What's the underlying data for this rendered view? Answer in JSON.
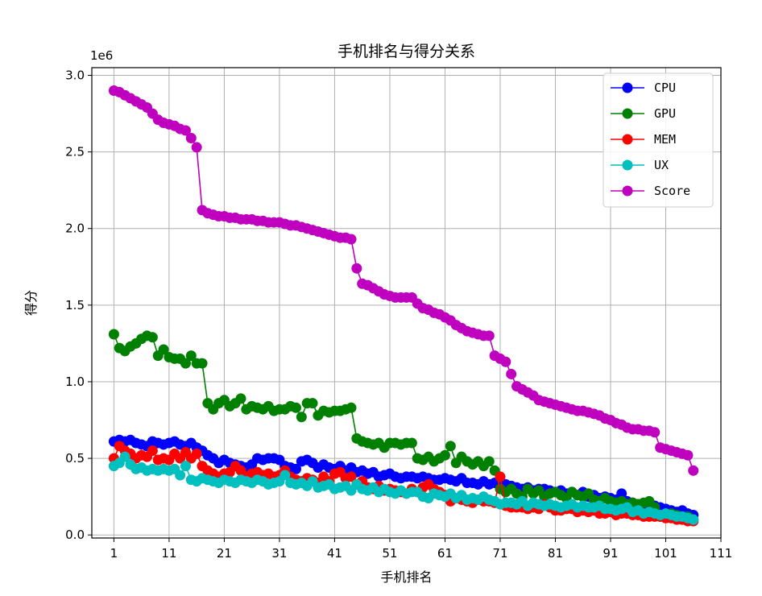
{
  "chart_data": {
    "type": "line",
    "title": "手机排名与得分关系",
    "xlabel": "手机排名",
    "ylabel": "得分",
    "y_offset_label": "1e6",
    "xlim": [
      -3,
      111
    ],
    "ylim": [
      -0.02,
      3.05
    ],
    "xticks": [
      1,
      11,
      21,
      31,
      41,
      51,
      61,
      71,
      81,
      91,
      101,
      111
    ],
    "xtick_labels": [
      "1",
      "11",
      "21",
      "31",
      "41",
      "51",
      "61",
      "71",
      "81",
      "91",
      "101",
      "111"
    ],
    "yticks": [
      0.0,
      0.5,
      1.0,
      1.5,
      2.0,
      2.5,
      3.0
    ],
    "ytick_labels": [
      "0.0",
      "0.5",
      "1.0",
      "1.5",
      "2.0",
      "2.5",
      "3.0"
    ],
    "grid": true,
    "legend_position": "top-right",
    "x": [
      1,
      2,
      3,
      4,
      5,
      6,
      7,
      8,
      9,
      10,
      11,
      12,
      13,
      14,
      15,
      16,
      17,
      18,
      19,
      20,
      21,
      22,
      23,
      24,
      25,
      26,
      27,
      28,
      29,
      30,
      31,
      32,
      33,
      34,
      35,
      36,
      37,
      38,
      39,
      40,
      41,
      42,
      43,
      44,
      45,
      46,
      47,
      48,
      49,
      50,
      51,
      52,
      53,
      54,
      55,
      56,
      57,
      58,
      59,
      60,
      61,
      62,
      63,
      64,
      65,
      66,
      67,
      68,
      69,
      70,
      71,
      72,
      73,
      74,
      75,
      76,
      77,
      78,
      79,
      80,
      81,
      82,
      83,
      84,
      85,
      86,
      87,
      88,
      89,
      90,
      91,
      92,
      93,
      94,
      95,
      96,
      97,
      98,
      99,
      100,
      101,
      102,
      103,
      104,
      105,
      106
    ],
    "series": [
      {
        "name": "CPU",
        "color": "#0000ff",
        "values": [
          0.61,
          0.62,
          0.61,
          0.62,
          0.6,
          0.59,
          0.58,
          0.61,
          0.6,
          0.59,
          0.6,
          0.61,
          0.59,
          0.58,
          0.6,
          0.57,
          0.55,
          0.52,
          0.5,
          0.47,
          0.49,
          0.47,
          0.46,
          0.45,
          0.44,
          0.46,
          0.5,
          0.49,
          0.5,
          0.5,
          0.49,
          0.45,
          0.44,
          0.43,
          0.48,
          0.49,
          0.47,
          0.44,
          0.46,
          0.44,
          0.43,
          0.45,
          0.42,
          0.44,
          0.41,
          0.42,
          0.4,
          0.41,
          0.38,
          0.39,
          0.4,
          0.38,
          0.37,
          0.38,
          0.38,
          0.37,
          0.38,
          0.37,
          0.36,
          0.36,
          0.37,
          0.36,
          0.35,
          0.37,
          0.34,
          0.34,
          0.33,
          0.35,
          0.33,
          0.34,
          0.32,
          0.33,
          0.32,
          0.31,
          0.3,
          0.31,
          0.29,
          0.3,
          0.3,
          0.29,
          0.28,
          0.29,
          0.27,
          0.28,
          0.26,
          0.28,
          0.25,
          0.26,
          0.24,
          0.25,
          0.24,
          0.23,
          0.27,
          0.22,
          0.21,
          0.2,
          0.19,
          0.18,
          0.19,
          0.18,
          0.17,
          0.16,
          0.15,
          0.16,
          0.14,
          0.13
        ]
      },
      {
        "name": "GPU",
        "color": "#008000",
        "values": [
          1.31,
          1.22,
          1.2,
          1.23,
          1.25,
          1.28,
          1.3,
          1.29,
          1.17,
          1.21,
          1.16,
          1.15,
          1.15,
          1.12,
          1.17,
          1.12,
          1.12,
          0.86,
          0.82,
          0.86,
          0.88,
          0.84,
          0.86,
          0.89,
          0.82,
          0.84,
          0.83,
          0.82,
          0.84,
          0.81,
          0.82,
          0.82,
          0.84,
          0.83,
          0.77,
          0.86,
          0.86,
          0.78,
          0.81,
          0.8,
          0.81,
          0.81,
          0.82,
          0.83,
          0.63,
          0.61,
          0.6,
          0.59,
          0.6,
          0.57,
          0.6,
          0.6,
          0.59,
          0.6,
          0.6,
          0.5,
          0.49,
          0.51,
          0.48,
          0.5,
          0.52,
          0.58,
          0.47,
          0.51,
          0.48,
          0.46,
          0.48,
          0.45,
          0.48,
          0.42,
          0.3,
          0.28,
          0.3,
          0.27,
          0.25,
          0.3,
          0.27,
          0.29,
          0.25,
          0.27,
          0.28,
          0.26,
          0.24,
          0.28,
          0.26,
          0.25,
          0.27,
          0.23,
          0.22,
          0.24,
          0.22,
          0.21,
          0.22,
          0.2,
          0.21,
          0.2,
          0.21,
          0.22,
          0.18,
          0.12,
          0.13,
          0.14,
          0.13,
          0.11,
          0.12,
          0.1
        ]
      },
      {
        "name": "MEM",
        "color": "#ff0000",
        "values": [
          0.5,
          0.58,
          0.55,
          0.53,
          0.5,
          0.52,
          0.51,
          0.55,
          0.49,
          0.5,
          0.49,
          0.53,
          0.5,
          0.54,
          0.5,
          0.53,
          0.45,
          0.42,
          0.4,
          0.38,
          0.4,
          0.41,
          0.45,
          0.42,
          0.38,
          0.4,
          0.41,
          0.39,
          0.4,
          0.38,
          0.39,
          0.42,
          0.38,
          0.36,
          0.35,
          0.37,
          0.36,
          0.34,
          0.38,
          0.35,
          0.4,
          0.41,
          0.37,
          0.38,
          0.33,
          0.35,
          0.31,
          0.3,
          0.32,
          0.29,
          0.3,
          0.29,
          0.28,
          0.27,
          0.3,
          0.28,
          0.31,
          0.33,
          0.3,
          0.28,
          0.26,
          0.22,
          0.24,
          0.23,
          0.22,
          0.21,
          0.23,
          0.22,
          0.22,
          0.21,
          0.38,
          0.19,
          0.18,
          0.18,
          0.18,
          0.17,
          0.18,
          0.17,
          0.2,
          0.18,
          0.16,
          0.16,
          0.17,
          0.17,
          0.15,
          0.16,
          0.15,
          0.16,
          0.14,
          0.14,
          0.15,
          0.13,
          0.14,
          0.14,
          0.13,
          0.13,
          0.12,
          0.12,
          0.12,
          0.12,
          0.11,
          0.11,
          0.1,
          0.1,
          0.09,
          0.09
        ]
      },
      {
        "name": "UX",
        "color": "#00bfbf",
        "values": [
          0.45,
          0.47,
          0.51,
          0.46,
          0.43,
          0.44,
          0.42,
          0.43,
          0.42,
          0.43,
          0.42,
          0.43,
          0.39,
          0.45,
          0.36,
          0.35,
          0.37,
          0.36,
          0.35,
          0.34,
          0.36,
          0.35,
          0.34,
          0.36,
          0.35,
          0.34,
          0.36,
          0.35,
          0.33,
          0.34,
          0.35,
          0.39,
          0.34,
          0.33,
          0.34,
          0.32,
          0.35,
          0.31,
          0.32,
          0.33,
          0.3,
          0.31,
          0.32,
          0.29,
          0.33,
          0.3,
          0.29,
          0.31,
          0.28,
          0.3,
          0.28,
          0.27,
          0.29,
          0.27,
          0.28,
          0.28,
          0.25,
          0.24,
          0.27,
          0.26,
          0.25,
          0.27,
          0.24,
          0.26,
          0.23,
          0.24,
          0.23,
          0.25,
          0.23,
          0.22,
          0.2,
          0.21,
          0.21,
          0.2,
          0.22,
          0.19,
          0.21,
          0.2,
          0.19,
          0.2,
          0.19,
          0.18,
          0.19,
          0.2,
          0.18,
          0.19,
          0.18,
          0.18,
          0.19,
          0.17,
          0.17,
          0.16,
          0.17,
          0.18,
          0.15,
          0.16,
          0.14,
          0.15,
          0.14,
          0.13,
          0.14,
          0.13,
          0.12,
          0.12,
          0.11,
          0.1
        ]
      },
      {
        "name": "Score",
        "color": "#bf00bf",
        "values": [
          2.9,
          2.89,
          2.87,
          2.85,
          2.83,
          2.81,
          2.79,
          2.75,
          2.71,
          2.69,
          2.68,
          2.67,
          2.65,
          2.64,
          2.59,
          2.53,
          2.12,
          2.1,
          2.09,
          2.08,
          2.08,
          2.07,
          2.07,
          2.06,
          2.06,
          2.06,
          2.05,
          2.05,
          2.04,
          2.04,
          2.04,
          2.03,
          2.02,
          2.02,
          2.01,
          2.0,
          1.99,
          1.98,
          1.97,
          1.96,
          1.95,
          1.94,
          1.94,
          1.93,
          1.74,
          1.64,
          1.63,
          1.61,
          1.59,
          1.57,
          1.56,
          1.55,
          1.55,
          1.55,
          1.55,
          1.51,
          1.48,
          1.47,
          1.45,
          1.44,
          1.42,
          1.4,
          1.37,
          1.35,
          1.33,
          1.32,
          1.31,
          1.3,
          1.3,
          1.17,
          1.15,
          1.13,
          1.05,
          0.97,
          0.95,
          0.93,
          0.91,
          0.88,
          0.87,
          0.86,
          0.85,
          0.84,
          0.83,
          0.82,
          0.81,
          0.81,
          0.8,
          0.79,
          0.78,
          0.76,
          0.75,
          0.73,
          0.72,
          0.7,
          0.69,
          0.69,
          0.68,
          0.68,
          0.67,
          0.57,
          0.56,
          0.55,
          0.54,
          0.53,
          0.52,
          0.42
        ]
      }
    ]
  }
}
